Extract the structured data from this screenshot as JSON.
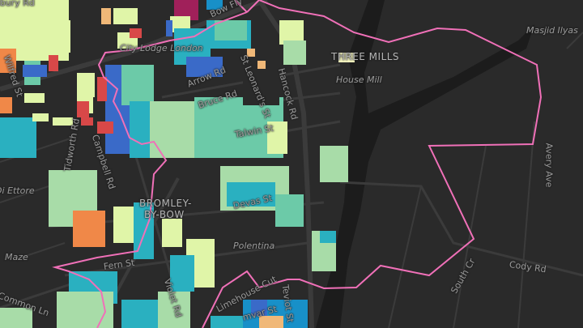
{
  "map": {
    "boundary_color": "#f070b8",
    "background_color": "#2a2a2a",
    "water_color": "#1c1c1c",
    "building_palette": [
      "#e0f5a8",
      "#a8dca8",
      "#6ccaa8",
      "#2ab0c0",
      "#1890c8",
      "#3a6ac8",
      "#f0b878",
      "#f08848",
      "#d84848",
      "#a0205a"
    ],
    "labels": {
      "sbury_rd": "sbury Rd",
      "wilfred_st": "Wilfred St",
      "bow_flyover": "Bow Fly",
      "city_lodge": "City Lodge London",
      "arrow_rd": "Arrow Rd",
      "bruce_rd": "Bruce Rd",
      "st_leonards_st": "St Leonard's St",
      "hancock_rd": "Hancock Rd",
      "talwin_st": "Talwin St",
      "campbell_rd": "Campbell Rd",
      "tidworth_rd": "Tidworth Rd",
      "di_ettore": "Di Ettore",
      "maze": "Maze",
      "common_ln": "Common Ln",
      "bromley_by_bow_1": "BROMLEY-",
      "bromley_by_bow_2": "BY-BOW",
      "devas_st": "Devas St",
      "polentina": "Polentina",
      "fern_st": "Fern St",
      "violet_rd": "Violet Rd",
      "limehouse_cut": "Limehouse Cut",
      "teviot_st": "Teviot St",
      "lamvar_st": "mvar St",
      "three_mills": "THREE MILLS",
      "house_mill": "House Mill",
      "masjid_ilyas": "Masjid Ilyas",
      "avery_ave": "Avery Ave",
      "cody_rd": "Cody Rd",
      "south_cr": "South Cr"
    }
  }
}
